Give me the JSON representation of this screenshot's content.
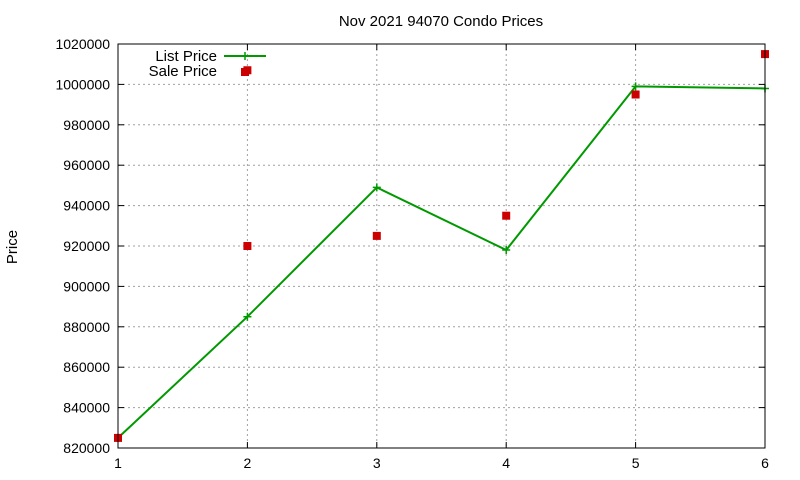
{
  "chart_data": {
    "type": "line",
    "title": "Nov 2021 94070 Condo Prices",
    "xlabel": "",
    "ylabel": "Price",
    "xlim": [
      1,
      6
    ],
    "ylim": [
      820000,
      1020000
    ],
    "xticks": [
      1,
      2,
      3,
      4,
      5,
      6
    ],
    "yticks": [
      820000,
      840000,
      860000,
      880000,
      900000,
      920000,
      940000,
      960000,
      980000,
      1000000,
      1020000
    ],
    "grid": true,
    "legend_position": "top-left",
    "series": [
      {
        "name": "List Price",
        "style": "linespoints",
        "marker": "plus",
        "color": "#009900",
        "x": [
          1,
          2,
          3,
          4,
          5,
          6
        ],
        "y": [
          825000,
          885000,
          949000,
          918000,
          999000,
          998000
        ]
      },
      {
        "name": "Sale Price",
        "style": "points",
        "marker": "square",
        "color": "#cc0000",
        "x": [
          1,
          2,
          2,
          3,
          4,
          5,
          6
        ],
        "y": [
          825000,
          920000,
          1007000,
          925000,
          935000,
          995000,
          1015000
        ]
      }
    ]
  }
}
